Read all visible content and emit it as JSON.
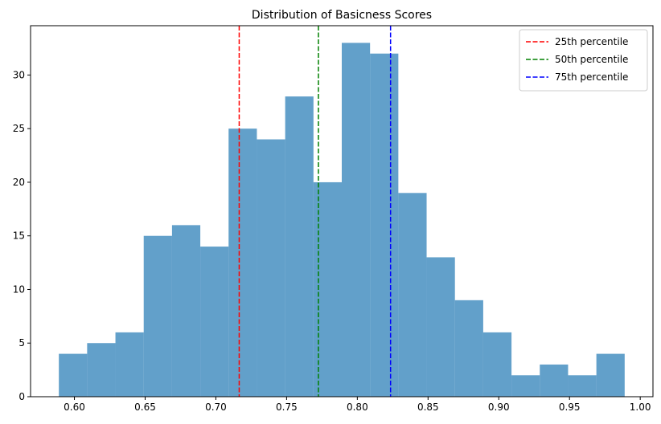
{
  "chart_data": {
    "type": "bar",
    "title": "Distribution of Basicness Scores",
    "xlabel": "",
    "ylabel": "",
    "xlim": [
      0.569,
      1.009
    ],
    "ylim": [
      0,
      34.6
    ],
    "x_ticks": [
      0.6,
      0.65,
      0.7,
      0.75,
      0.8,
      0.85,
      0.9,
      0.95,
      1.0
    ],
    "x_tick_labels": [
      "0.60",
      "0.65",
      "0.70",
      "0.75",
      "0.80",
      "0.85",
      "0.90",
      "0.95",
      "1.00"
    ],
    "y_ticks": [
      0,
      5,
      10,
      15,
      20,
      25,
      30
    ],
    "y_tick_labels": [
      "0",
      "5",
      "10",
      "15",
      "20",
      "25",
      "30"
    ],
    "bin_start": 0.589,
    "bin_width": 0.02,
    "counts": [
      4,
      5,
      6,
      15,
      16,
      14,
      25,
      24,
      28,
      20,
      33,
      32,
      19,
      13,
      9,
      6,
      2,
      3,
      2,
      4
    ],
    "bar_color": "#1f77b4",
    "bar_alpha": 0.7,
    "grid": false,
    "legend_position": "top-right",
    "percentiles": [
      {
        "name": "25th percentile",
        "value": 0.7165,
        "color": "#ff0000"
      },
      {
        "name": "50th percentile",
        "value": 0.7725,
        "color": "#008000"
      },
      {
        "name": "75th percentile",
        "value": 0.8235,
        "color": "#0000ff"
      }
    ]
  }
}
